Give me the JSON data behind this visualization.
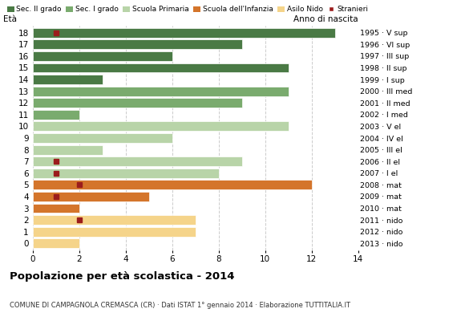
{
  "ages": [
    18,
    17,
    16,
    15,
    14,
    13,
    12,
    11,
    10,
    9,
    8,
    7,
    6,
    5,
    4,
    3,
    2,
    1,
    0
  ],
  "years": [
    "1995 · V sup",
    "1996 · VI sup",
    "1997 · III sup",
    "1998 · II sup",
    "1999 · I sup",
    "2000 · III med",
    "2001 · II med",
    "2002 · I med",
    "2003 · V el",
    "2004 · IV el",
    "2005 · III el",
    "2006 · II el",
    "2007 · I el",
    "2008 · mat",
    "2009 · mat",
    "2010 · mat",
    "2011 · nido",
    "2012 · nido",
    "2013 · nido"
  ],
  "values": [
    13,
    9,
    6,
    11,
    3,
    11,
    9,
    2,
    11,
    6,
    3,
    9,
    8,
    12,
    5,
    2,
    7,
    7,
    2
  ],
  "stranieri": [
    1,
    0,
    0,
    0,
    0,
    0,
    0,
    0,
    0,
    0,
    0,
    1,
    1,
    2,
    1,
    0,
    2,
    0,
    0
  ],
  "categories": [
    "Sec. II grado",
    "Sec. I grado",
    "Scuola Primaria",
    "Scuola dell'Infanzia",
    "Asilo Nido"
  ],
  "colors": {
    "Sec. II grado": "#4a7a45",
    "Sec. I grado": "#7aab6e",
    "Scuola Primaria": "#b8d4a8",
    "Scuola dell'Infanzia": "#d4752b",
    "Asilo Nido": "#f5d48a"
  },
  "age_category": {
    "18": "Sec. II grado",
    "17": "Sec. II grado",
    "16": "Sec. II grado",
    "15": "Sec. II grado",
    "14": "Sec. II grado",
    "13": "Sec. I grado",
    "12": "Sec. I grado",
    "11": "Sec. I grado",
    "10": "Scuola Primaria",
    "9": "Scuola Primaria",
    "8": "Scuola Primaria",
    "7": "Scuola Primaria",
    "6": "Scuola Primaria",
    "5": "Scuola dell'Infanzia",
    "4": "Scuola dell'Infanzia",
    "3": "Scuola dell'Infanzia",
    "2": "Asilo Nido",
    "1": "Asilo Nido",
    "0": "Asilo Nido"
  },
  "title": "Popolazione per età scolastica - 2014",
  "subtitle": "COMUNE DI CAMPAGNOLA CREMASCA (CR) · Dati ISTAT 1° gennaio 2014 · Elaborazione TUTTITALIA.IT",
  "xlabel_eta": "Età",
  "xlabel_anno": "Anno di nascita",
  "xlim": [
    0,
    14
  ],
  "xticks": [
    0,
    2,
    4,
    6,
    8,
    10,
    12,
    14
  ],
  "stranieri_color": "#9b1c1c",
  "stranieri_label": "Stranieri",
  "background_color": "#ffffff",
  "grid_color": "#cccccc"
}
